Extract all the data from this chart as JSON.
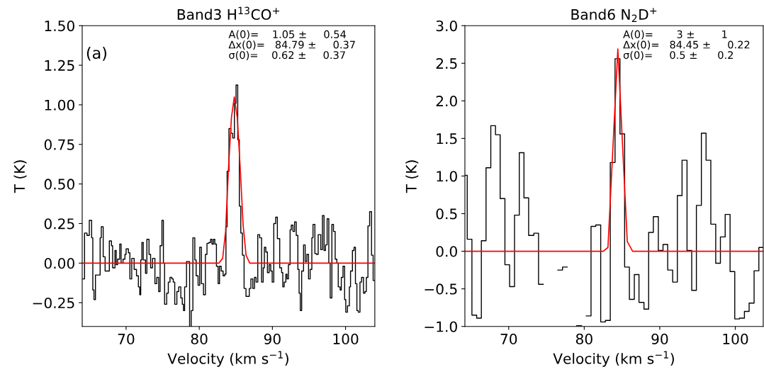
{
  "chart_data": [
    {
      "type": "step",
      "title": "Band3 H$^{13}$CO$^{+}$",
      "xlabel": "Velocity (km s$^{−1}$)",
      "ylabel": "T (K)",
      "xlim": [
        64,
        104
      ],
      "ylim": [
        -0.4,
        1.5
      ],
      "xticks": [
        70,
        80,
        90,
        100
      ],
      "yticks": [
        {
          "value": -0.25,
          "label": "−0.25"
        },
        {
          "value": 0,
          "label": "0.00"
        },
        {
          "value": 0.25,
          "label": "0.25"
        },
        {
          "value": 0.5,
          "label": "0.50"
        },
        {
          "value": 0.75,
          "label": "0.75"
        },
        {
          "value": 1.0,
          "label": "1.00"
        },
        {
          "value": 1.25,
          "label": "1.25"
        },
        {
          "value": 1.5,
          "label": "1.50"
        }
      ],
      "grid": false,
      "legend": false,
      "marker": "none",
      "line_style": "solid",
      "annotations": [
        "(a)",
        "A(0)=    1.05 ±     0.54\nΔx(0)=   84.79 ±     0.37\nσ(0)=    0.62 ±     0.37"
      ],
      "series": [
        {
          "color": "#000000",
          "x": [
            64.0,
            64.32,
            64.65,
            64.97,
            65.29,
            65.45,
            65.61,
            65.81,
            66.13,
            66.45,
            66.61,
            66.87,
            67.13,
            67.52,
            67.71,
            68.0,
            68.16,
            68.48,
            68.65,
            68.84,
            69.13,
            69.32,
            69.58,
            69.84,
            70.0,
            70.32,
            70.52,
            70.77,
            71.1,
            71.42,
            71.68,
            71.87,
            72.0,
            72.16,
            72.35,
            72.65,
            72.84,
            73.13,
            73.35,
            73.61,
            73.94,
            74.19,
            74.45,
            74.65,
            74.9,
            75.1,
            75.26,
            75.55,
            75.77,
            76.0,
            76.26,
            76.45,
            76.65,
            76.94,
            77.19,
            77.48,
            77.68,
            77.84,
            78.0,
            78.26,
            78.48,
            78.68,
            78.9,
            79.13,
            79.39,
            79.58,
            79.84,
            80.06,
            80.29,
            80.58,
            80.84,
            81.06,
            81.32,
            81.55,
            81.74,
            81.94,
            82.13,
            82.35,
            82.58,
            82.77,
            83.0,
            83.26,
            83.48,
            83.65,
            83.81,
            84.06,
            84.32,
            84.58,
            84.81,
            85.03,
            85.26,
            85.48,
            85.68,
            85.9,
            86.13,
            86.39,
            86.61,
            86.84,
            87.06,
            87.32,
            87.55,
            87.77,
            88.0,
            88.26,
            88.52,
            88.74,
            88.9,
            89.1,
            89.32,
            89.55,
            89.77,
            89.97,
            90.19,
            90.45,
            90.68,
            91.0,
            91.26,
            91.42,
            91.61,
            91.84,
            92.0,
            92.19,
            92.42,
            92.58,
            92.81,
            93.03,
            93.26,
            93.48,
            93.65,
            93.81,
            94.0,
            94.26,
            94.48,
            94.71,
            94.94,
            95.16,
            95.39,
            95.55,
            95.81,
            96.03,
            96.26,
            96.61,
            96.84,
            97.06,
            97.26,
            97.48,
            97.71,
            97.9,
            98.13,
            98.35,
            98.58,
            98.81,
            99.0,
            99.26,
            99.42,
            99.65,
            99.87,
            100.03,
            100.26,
            100.52,
            100.68,
            100.94,
            101.16,
            101.35,
            101.55,
            101.74,
            101.97,
            102.19,
            102.45,
            102.65,
            102.84,
            103.06,
            103.29,
            103.55,
            103.77,
            104
          ],
          "values": [
            -0.1,
            0.19,
            0.175,
            0.27,
            0.16,
            -0.17,
            -0.23,
            -0.075,
            -0.075,
            0.16,
            0.23,
            0.04,
            -0.05,
            -0.05,
            0.14,
            0.11,
            -0.03,
            0.08,
            -0.01,
            0.025,
            0.12,
            0,
            0.025,
            0.055,
            0.09,
            0.065,
            -0.1,
            0.03,
            -0.04,
            -0.08,
            -0.15,
            -0.2,
            0.02,
            0.13,
            0.02,
            -0.065,
            0.15,
            0.055,
            -0.03,
            0.03,
            -0.13,
            -0.09,
            -0.18,
            0.11,
            0.27,
            0,
            -0.26,
            -0.19,
            -0.12,
            -0.09,
            -0.1,
            -0.12,
            -0.26,
            -0.18,
            -0.15,
            -0.22,
            -0.26,
            -0.3,
            -0.15,
            0.01,
            0.01,
            -0.4,
            -0.3,
            0.16,
            0.02,
            -0.08,
            -0.14,
            0.1,
            -0.13,
            -0.2,
            0.055,
            0.125,
            0.13,
            0.15,
            0.12,
            0.15,
            0.12,
            -0.02,
            -0.13,
            -0.02,
            -0.05,
            -0.08,
            -0.07,
            0.23,
            0.58,
            0.85,
            0.82,
            0.79,
            1.01,
            1.125,
            0.78,
            0.36,
            0.19,
            0.05,
            -0.16,
            -0.21,
            -0.21,
            -0.16,
            -0.1,
            -0.16,
            -0.09,
            -0.12,
            0.18,
            0.16,
            -0.12,
            -0.03,
            0.1,
            0.07,
            -0.06,
            -0.01,
            -0.05,
            -0.12,
            0.25,
            0.29,
            0.155,
            -0.03,
            -0.06,
            -0.15,
            -0.12,
            -0.07,
            -0.1,
            -0.01,
            0.21,
            0.24,
            0.2,
            0.26,
            0.175,
            -0.04,
            -0.19,
            -0.3,
            -0.05,
            0.115,
            0.01,
            0.055,
            -0.1,
            -0.04,
            0.16,
            0.245,
            0.06,
            0.055,
            0.18,
            0.085,
            0.3,
            0.08,
            0.115,
            0.28,
            0,
            -0.22,
            0.245,
            0.2,
            0.025,
            0,
            -0.15,
            -0.17,
            -0.09,
            -0.02,
            -0.23,
            -0.31,
            -0.27,
            -0.15,
            -0.05,
            0.08,
            0.1,
            -0.13,
            -0.3,
            -0.31,
            -0.12,
            -0.09,
            -0.19,
            -0.18,
            -0.09,
            0.235,
            0.325,
            0.05,
            -0.11,
            -0.11
          ]
        },
        {
          "type": "line",
          "color": "#ff0000",
          "x": [
            64,
            82.7,
            83.2,
            83.6,
            84.0,
            84.4,
            84.79,
            85.2,
            85.6,
            86.0,
            86.4,
            86.9,
            104
          ],
          "values": [
            0,
            0,
            0.03,
            0.2,
            0.6,
            0.92,
            1.05,
            0.92,
            0.6,
            0.24,
            0.05,
            0,
            0
          ]
        }
      ]
    },
    {
      "type": "step",
      "title": "Band6 N$_{2}$D$^{+}$",
      "xlabel": "Velocity (km s$^{−1}$)",
      "ylabel": "T (K)",
      "xlim": [
        64.2,
        103.7
      ],
      "ylim": [
        -1.0,
        3.0
      ],
      "xticks": [
        70,
        80,
        90,
        100
      ],
      "yticks": [
        {
          "value": -1.0,
          "label": "−1.0"
        },
        {
          "value": -0.5,
          "label": "−0.5"
        },
        {
          "value": 0,
          "label": "0.0"
        },
        {
          "value": 0.5,
          "label": "0.5"
        },
        {
          "value": 1.0,
          "label": "1.0"
        },
        {
          "value": 1.5,
          "label": "1.5"
        },
        {
          "value": 2.0,
          "label": "2.0"
        },
        {
          "value": 2.5,
          "label": "2.5"
        },
        {
          "value": 3.0,
          "label": "3.0"
        }
      ],
      "grid": false,
      "legend": false,
      "marker": "none",
      "line_style": "solid",
      "annotations": [
        "A(0)=       3 ±        1\nΔx(0)=   84.45 ±     0.22\nσ(0)=     0.5 ±      0.2"
      ],
      "series": [
        {
          "color": "#000000",
          "x": [
            64.2,
            64.51,
            65.13,
            65.76,
            66.38,
            67.0,
            67.63,
            68.25,
            68.87,
            69.5,
            70.12,
            70.77,
            71.4,
            72.02,
            72.64,
            73.33,
            73.95,
            74.57,
            75.2,
            75.82,
            76.51,
            77.13,
            77.75,
            78.37,
            79.0,
            79.65,
            80.27,
            80.9,
            81.52,
            82.18,
            82.8,
            83.45,
            84.08,
            84.73,
            85.35,
            85.98,
            86.63,
            87.25,
            87.91,
            88.53,
            89.15,
            89.81,
            90.43,
            91.05,
            91.71,
            92.33,
            92.95,
            93.61,
            94.23,
            94.85,
            95.51,
            96.13,
            96.76,
            97.41,
            98.03,
            98.66,
            99.31,
            99.93,
            100.56,
            101.21,
            101.83,
            102.49,
            103.12,
            103.7
          ],
          "values": [
            1.01,
            0.16,
            -0.85,
            -0.89,
            0.14,
            1.11,
            1.67,
            1.55,
            0.7,
            -0.18,
            -0.47,
            0.48,
            1.31,
            0.71,
            0.21,
            0.24,
            -0.44,
            null,
            null,
            null,
            -0.25,
            -0.21,
            null,
            null,
            -0.99,
            null,
            -0.86,
            0.33,
            0.35,
            -0.94,
            -0.92,
            1.18,
            2.56,
            1.56,
            -0.21,
            -0.64,
            -0.31,
            -0.68,
            -0.77,
            0.25,
            0.46,
            0.01,
            0.09,
            -0.25,
            -0.41,
            0.74,
            1.21,
            0.01,
            -0.52,
            0.61,
            1.57,
            1.21,
            0.36,
            -0.16,
            0.19,
            0.49,
            -0.27,
            -0.9,
            -0.89,
            -0.8,
            -0.69,
            -0.26,
            0.05,
            0.05
          ]
        },
        {
          "type": "line",
          "color": "#ff0000",
          "x": [
            64.2,
            82.52,
            83.14,
            84.45,
            85.7,
            86.41,
            103.7
          ],
          "values": [
            0,
            0,
            0.05,
            2.69,
            0.13,
            0,
            0
          ]
        }
      ]
    }
  ]
}
